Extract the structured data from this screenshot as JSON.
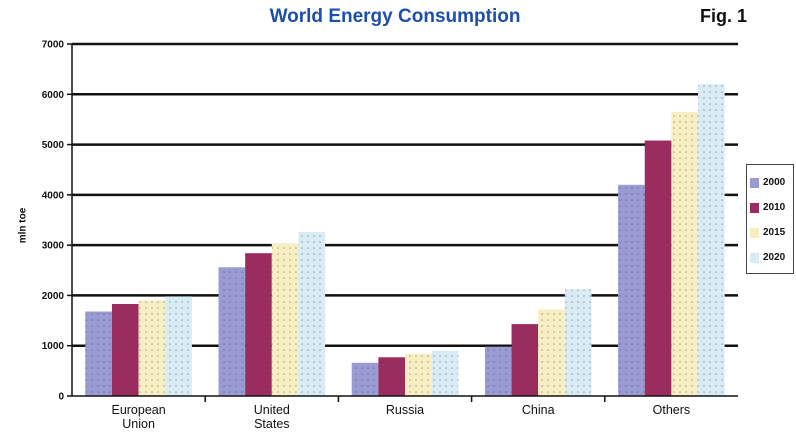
{
  "chart_data": {
    "type": "bar",
    "title": "World Energy Consumption",
    "figure_label": "Fig. 1",
    "ylabel": "mln toe",
    "xlabel": "",
    "ylim": [
      0,
      7000
    ],
    "yticks": [
      0,
      1000,
      2000,
      3000,
      4000,
      5000,
      6000,
      7000
    ],
    "ytick_labels": [
      "0",
      "1000",
      "2000",
      "3000",
      "4000",
      "5000",
      "6000",
      "7000"
    ],
    "grid": true,
    "legend_position": "right",
    "categories": [
      "European Union",
      "United States",
      "Russia",
      "China",
      "Others"
    ],
    "series": [
      {
        "name": "2000",
        "color": "#9b9bd3",
        "values": [
          1680,
          2560,
          660,
          980,
          4200
        ]
      },
      {
        "name": "2010",
        "color": "#9c2c5e",
        "values": [
          1830,
          2840,
          770,
          1430,
          5080
        ]
      },
      {
        "name": "2015",
        "color": "#f7efc2",
        "values": [
          1900,
          3030,
          840,
          1720,
          5650
        ]
      },
      {
        "name": "2020",
        "color": "#d9ecf4",
        "values": [
          1980,
          3260,
          900,
          2120,
          6200
        ]
      }
    ]
  }
}
